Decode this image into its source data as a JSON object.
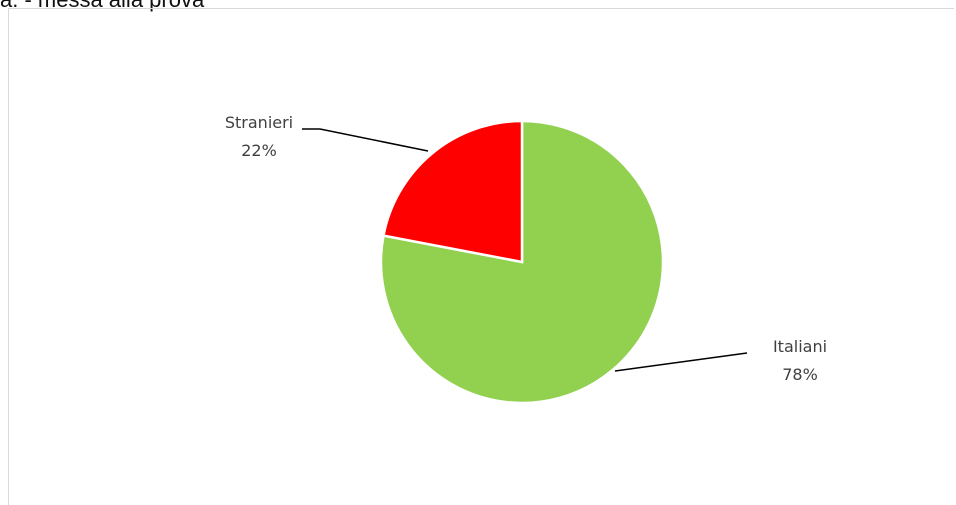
{
  "header": {
    "title_fragment": "a. - messa alla prova"
  },
  "chart_data": {
    "type": "pie",
    "start_angle_deg": 0,
    "slices": [
      {
        "label": "Italiani",
        "value": 78,
        "percent_label": "78%",
        "color": "#92d050"
      },
      {
        "label": "Stranieri",
        "value": 22,
        "percent_label": "22%",
        "color": "#ff0000"
      }
    ],
    "legend": "none",
    "slice_border_color": "#ffffff"
  }
}
